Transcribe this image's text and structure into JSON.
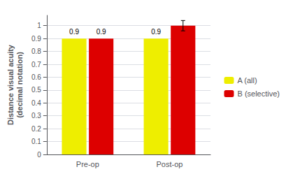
{
  "chart_data": {
    "type": "bar",
    "categories": [
      "Pre-op",
      "Post-op"
    ],
    "y_label": "Distance visual acuity\n(decimal notation)",
    "series": [
      {
        "name": "A (all)",
        "color": "#EEEE00",
        "values": [
          0.9,
          0.9
        ],
        "value_labels": [
          "0.9",
          "0.9"
        ]
      },
      {
        "name": "B (selective)",
        "color": "#DD0000",
        "values": [
          0.9,
          1.0
        ],
        "value_labels": [
          "0.9",
          null
        ],
        "error": [
          0.0,
          0.04
        ]
      }
    ],
    "ylim": [
      0,
      1.08
    ],
    "yticks": [
      0,
      0.1,
      0.2,
      0.3,
      0.4,
      0.5,
      0.6,
      0.7,
      0.8,
      0.9,
      1
    ],
    "grid": true,
    "legend": "right"
  }
}
